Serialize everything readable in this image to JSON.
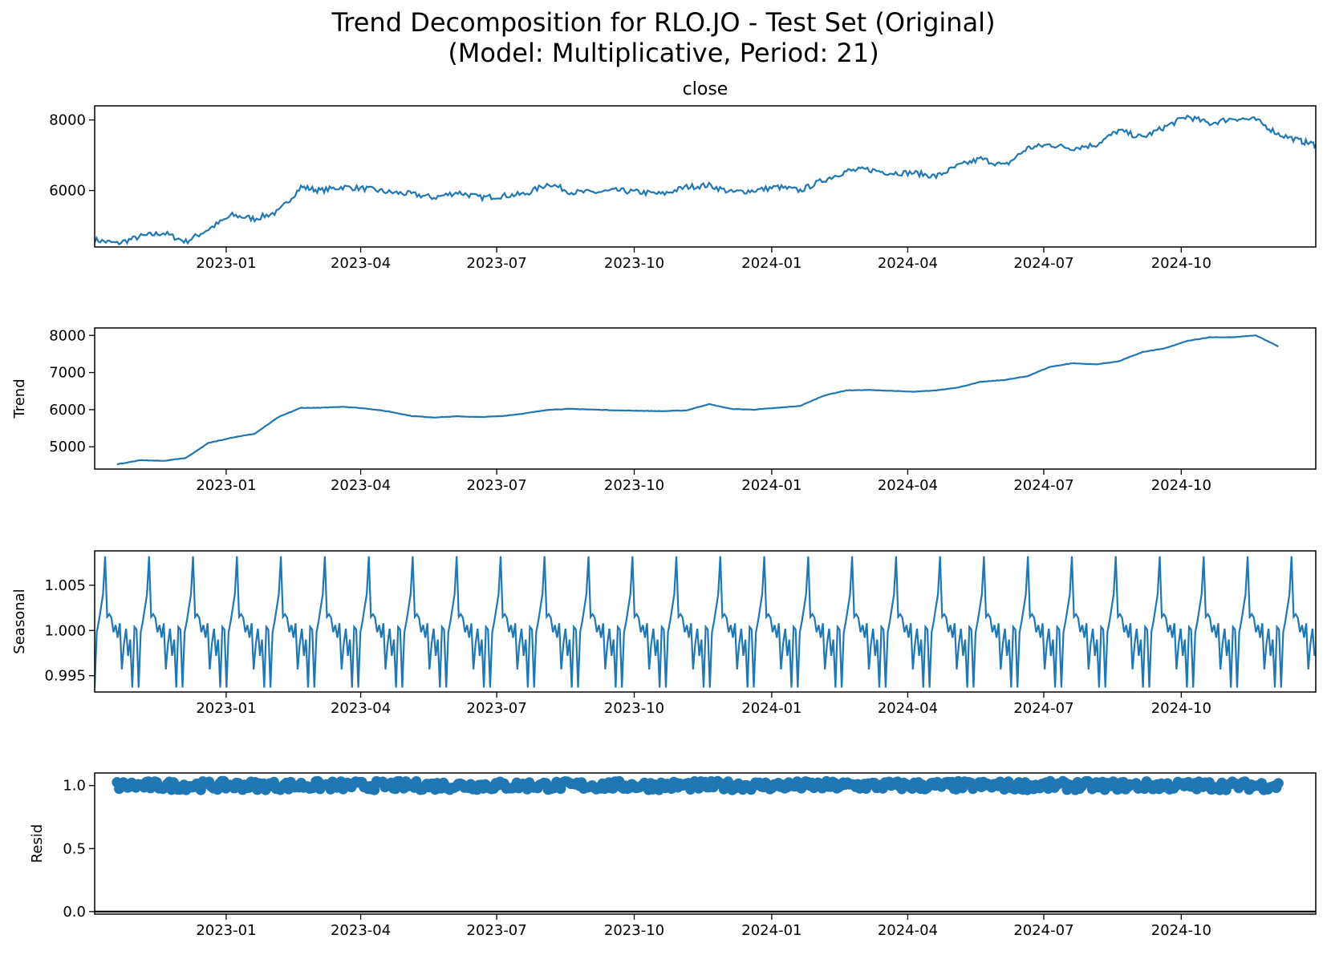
{
  "figure": {
    "title_line1": "Trend Decomposition for RLO.JO - Test Set (Original)",
    "title_line2": "(Model: Multiplicative, Period: 21)"
  },
  "colors": {
    "series": "#1f77b4",
    "axis": "#000000",
    "background": "#ffffff"
  },
  "chart_data": [
    {
      "type": "line",
      "title": "close",
      "xlabel": "",
      "ylabel": "",
      "x_ticks": [
        "2023-01",
        "2023-04",
        "2023-07",
        "2023-10",
        "2024-01",
        "2024-04",
        "2024-07",
        "2024-10"
      ],
      "y_ticks": [
        6000,
        8000
      ],
      "xlim": [
        "2022-10-05",
        "2024-12-30"
      ],
      "ylim": [
        4400,
        8400
      ],
      "series": [
        {
          "x": [
            "2022-10-05",
            "2022-10-20",
            "2022-11-05",
            "2022-11-20",
            "2022-12-05",
            "2022-12-20",
            "2023-01-05",
            "2023-01-20",
            "2023-02-05",
            "2023-02-20",
            "2023-03-05",
            "2023-03-20",
            "2023-04-05",
            "2023-04-20",
            "2023-05-05",
            "2023-05-20",
            "2023-06-05",
            "2023-06-20",
            "2023-07-05",
            "2023-07-20",
            "2023-08-05",
            "2023-08-20",
            "2023-09-05",
            "2023-09-20",
            "2023-10-05",
            "2023-10-20",
            "2023-11-05",
            "2023-11-20",
            "2023-12-05",
            "2023-12-20",
            "2024-01-05",
            "2024-01-20",
            "2024-02-05",
            "2024-02-20",
            "2024-03-05",
            "2024-03-20",
            "2024-04-05",
            "2024-04-20",
            "2024-05-05",
            "2024-05-20",
            "2024-06-05",
            "2024-06-20",
            "2024-07-05",
            "2024-07-20",
            "2024-08-05",
            "2024-08-20",
            "2024-09-05",
            "2024-09-20",
            "2024-10-05",
            "2024-10-20",
            "2024-11-05",
            "2024-11-20",
            "2024-12-05",
            "2024-12-20",
            "2024-12-30"
          ],
          "values": [
            4600,
            4500,
            4700,
            4800,
            4550,
            4900,
            5300,
            5200,
            5400,
            6100,
            6000,
            6100,
            6050,
            5950,
            5900,
            5800,
            5950,
            5800,
            5850,
            5900,
            6200,
            5950,
            5950,
            6000,
            5950,
            5900,
            6100,
            6150,
            5950,
            6000,
            6100,
            6000,
            6300,
            6550,
            6600,
            6500,
            6500,
            6400,
            6700,
            6900,
            6700,
            7200,
            7300,
            7200,
            7300,
            7700,
            7500,
            7800,
            8100,
            7900,
            8050,
            8000,
            7600,
            7400,
            7300
          ]
        }
      ]
    },
    {
      "type": "line",
      "title": "",
      "xlabel": "",
      "ylabel": "Trend",
      "x_ticks": [
        "2023-01",
        "2023-04",
        "2023-07",
        "2023-10",
        "2024-01",
        "2024-04",
        "2024-07",
        "2024-10"
      ],
      "y_ticks": [
        5000,
        6000,
        7000,
        8000
      ],
      "xlim": [
        "2022-10-05",
        "2024-12-30"
      ],
      "ylim": [
        4400,
        8200
      ],
      "series": [
        {
          "x": [
            "2022-10-20",
            "2022-11-05",
            "2022-11-20",
            "2022-12-05",
            "2022-12-20",
            "2023-01-05",
            "2023-01-20",
            "2023-02-05",
            "2023-02-20",
            "2023-03-05",
            "2023-03-20",
            "2023-04-05",
            "2023-04-20",
            "2023-05-05",
            "2023-05-20",
            "2023-06-05",
            "2023-06-20",
            "2023-07-05",
            "2023-07-20",
            "2023-08-05",
            "2023-08-20",
            "2023-09-05",
            "2023-09-20",
            "2023-10-05",
            "2023-10-20",
            "2023-11-05",
            "2023-11-20",
            "2023-12-05",
            "2023-12-20",
            "2024-01-05",
            "2024-01-20",
            "2024-02-05",
            "2024-02-20",
            "2024-03-05",
            "2024-03-20",
            "2024-04-05",
            "2024-04-20",
            "2024-05-05",
            "2024-05-20",
            "2024-06-05",
            "2024-06-20",
            "2024-07-05",
            "2024-07-20",
            "2024-08-05",
            "2024-08-20",
            "2024-09-05",
            "2024-09-20",
            "2024-10-05",
            "2024-10-20",
            "2024-11-05",
            "2024-11-20",
            "2024-12-05"
          ],
          "values": [
            4530,
            4640,
            4620,
            4700,
            5100,
            5250,
            5350,
            5800,
            6050,
            6050,
            6080,
            6030,
            5950,
            5830,
            5790,
            5820,
            5800,
            5830,
            5900,
            6000,
            6020,
            6000,
            5980,
            5970,
            5960,
            5980,
            6150,
            6020,
            6000,
            6050,
            6100,
            6380,
            6520,
            6530,
            6510,
            6480,
            6520,
            6600,
            6750,
            6800,
            6900,
            7150,
            7250,
            7220,
            7300,
            7550,
            7650,
            7850,
            7950,
            7950,
            8000,
            7700
          ]
        }
      ]
    },
    {
      "type": "line",
      "title": "",
      "xlabel": "",
      "ylabel": "Seasonal",
      "x_ticks": [
        "2023-01",
        "2023-04",
        "2023-07",
        "2023-10",
        "2024-01",
        "2024-04",
        "2024-07",
        "2024-10"
      ],
      "y_ticks": [
        "0.995",
        "1.000",
        "1.005"
      ],
      "xlim": [
        "2022-10-05",
        "2024-12-30"
      ],
      "ylim": [
        0.9932,
        1.0088
      ],
      "period": 21,
      "pattern": [
        0.9937,
        0.9998,
        1.001,
        1.0025,
        1.004,
        1.0082,
        1.0015,
        1.0018,
        1.0014,
        0.9998,
        1.0006,
        0.9992,
        1.0008,
        0.9957,
        0.9985,
        1.0002,
        0.9972,
        0.999,
        0.9937,
        1.0004,
        1.0001
      ]
    },
    {
      "type": "scatter",
      "title": "",
      "xlabel": "",
      "ylabel": "Resid",
      "x_ticks": [
        "2023-01",
        "2023-04",
        "2023-07",
        "2023-10",
        "2024-01",
        "2024-04",
        "2024-07",
        "2024-10"
      ],
      "y_ticks": [
        "0.0",
        "0.5",
        "1.0"
      ],
      "xlim": [
        "2022-10-05",
        "2024-12-30"
      ],
      "ylim": [
        -0.02,
        1.1
      ],
      "reference_line": 0,
      "range_x": [
        "2022-10-20",
        "2024-12-05"
      ],
      "typical_value": 1.0,
      "spread": 0.035
    }
  ]
}
